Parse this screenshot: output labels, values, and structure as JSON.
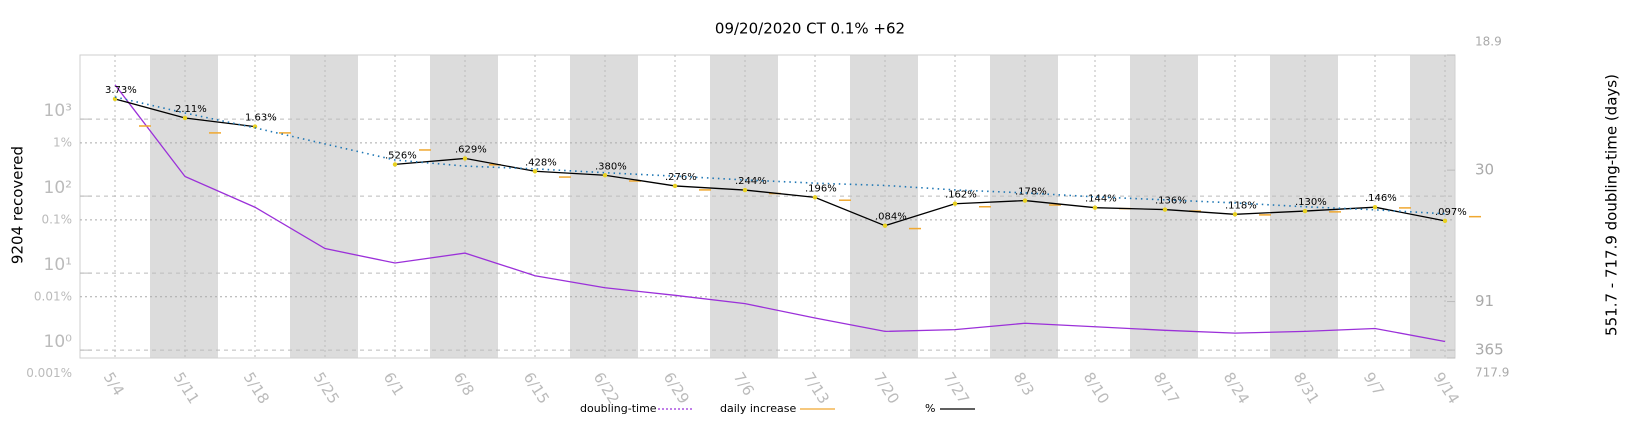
{
  "chart_data": {
    "type": "line",
    "title": "09/20/2020 CT 0.1% +62",
    "y_label": "9204 recovered",
    "y2_label": "551.7 - 717.9 doubling-time (days)",
    "categories": [
      "5/4",
      "5/11",
      "5/18",
      "5/25",
      "6/1",
      "6/8",
      "6/15",
      "6/22",
      "6/29",
      "7/6",
      "7/13",
      "7/20",
      "7/27",
      "8/3",
      "8/10",
      "8/17",
      "8/24",
      "8/31",
      "9/7",
      "9/14"
    ],
    "log_scale": true,
    "grid": true,
    "ylim": [
      0.0016,
      13.9
    ],
    "yticks": [
      {
        "value": 0.001,
        "label": "0.001%"
      },
      {
        "value": 0.01,
        "label": "0.01%"
      },
      {
        "value": 0.1,
        "label": "0.1%"
      },
      {
        "value": 1,
        "label": "1%"
      }
    ],
    "y_count_lim": [
      0.79,
      6800
    ],
    "y_count_ticks": [
      {
        "value": 1,
        "label": "10⁰"
      },
      {
        "value": 10,
        "label": "10¹"
      },
      {
        "value": 100,
        "label": "10²"
      },
      {
        "value": 1000,
        "label": "10³"
      }
    ],
    "y2lim": [
      18.9,
      717.9
    ],
    "y2_scale": "reciprocal",
    "y2ticks": [
      18.9,
      30,
      91,
      365,
      717.9
    ],
    "series": [
      {
        "name": "doubling-time",
        "color": "#9b30d9",
        "style": "solid-dotted-end",
        "axis": "y2",
        "values": [
          20.9,
          31,
          37,
          50,
          57,
          52,
          65,
          75,
          83,
          94,
          122,
          169,
          161,
          137,
          149,
          164,
          178,
          169,
          156,
          238
        ]
      },
      {
        "name": "daily increase",
        "color": "#f0a830",
        "style": "dash-marker",
        "values": [
          1.66,
          1.35,
          1.35,
          null,
          0.81,
          0.52,
          0.36,
          0.32,
          0.245,
          0.22,
          0.18,
          0.077,
          0.148,
          0.156,
          0.14,
          0.13,
          0.116,
          0.127,
          0.143,
          0.11
        ]
      },
      {
        "name": "%",
        "color": "#000000",
        "style": "solid",
        "values": [
          3.73,
          2.11,
          1.63,
          null,
          0.526,
          0.629,
          0.428,
          0.38,
          0.276,
          0.244,
          0.196,
          0.084,
          0.162,
          0.178,
          0.144,
          0.136,
          0.118,
          0.13,
          0.146,
          0.097
        ],
        "value_labels": [
          "3.73%",
          "2.11%",
          "1.63%",
          null,
          ".526%",
          ".629%",
          ".428%",
          ".380%",
          ".276%",
          ".244%",
          ".196%",
          ".084%",
          ".162%",
          ".178%",
          ".144%",
          ".136%",
          ".118%",
          ".130%",
          ".146%",
          ".097%"
        ]
      },
      {
        "color": "#1f77b4",
        "style": "dotted",
        "values": [
          3.96,
          2.45,
          1.57,
          0.97,
          0.6,
          0.5,
          0.46,
          0.41,
          0.37,
          0.33,
          0.3,
          0.28,
          0.245,
          0.224,
          0.199,
          0.182,
          0.166,
          0.148,
          0.135,
          0.12
        ]
      }
    ]
  }
}
